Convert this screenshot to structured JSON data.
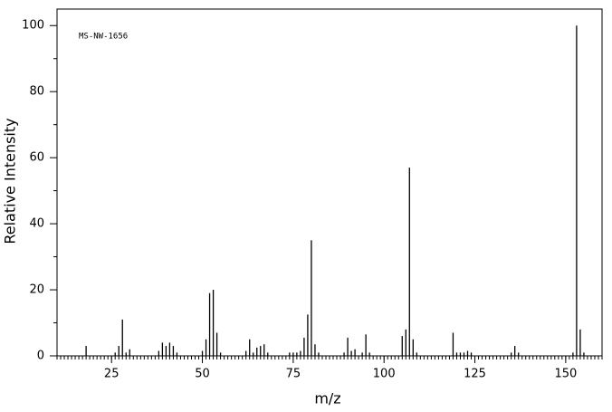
{
  "chart_data": {
    "type": "bar",
    "annotation": "MS-NW-1656",
    "xlabel": "m/z",
    "ylabel": "Relative Intensity",
    "x": [
      18,
      26,
      27,
      28,
      29,
      30,
      38,
      39,
      40,
      41,
      42,
      43,
      50,
      51,
      52,
      53,
      54,
      55,
      62,
      63,
      64,
      65,
      66,
      67,
      68,
      74,
      75,
      76,
      77,
      78,
      79,
      80,
      81,
      82,
      89,
      90,
      91,
      92,
      94,
      95,
      96,
      105,
      106,
      107,
      108,
      109,
      119,
      120,
      121,
      122,
      123,
      124,
      135,
      136,
      137,
      152,
      153,
      154,
      155
    ],
    "values": [
      3,
      1,
      3,
      11,
      1,
      2,
      1.5,
      4,
      3,
      4,
      3,
      1,
      1.5,
      5,
      19,
      20,
      7,
      1,
      1.5,
      5,
      1,
      2.5,
      3,
      3.5,
      1,
      1,
      1,
      1,
      1.5,
      5.5,
      12.5,
      35,
      3.5,
      1,
      1,
      5.5,
      1.5,
      2,
      1,
      6.5,
      1,
      6,
      8,
      57,
      5,
      1,
      7,
      1,
      1,
      1,
      1.5,
      1,
      1,
      3,
      1,
      1,
      100,
      8,
      1
    ],
    "color": "#000000",
    "xlim": [
      10,
      160
    ],
    "xticks": [
      25,
      50,
      75,
      100,
      125,
      150
    ],
    "ylim": [
      0,
      105
    ],
    "yticks": [
      0,
      20,
      40,
      60,
      80,
      100
    ]
  }
}
